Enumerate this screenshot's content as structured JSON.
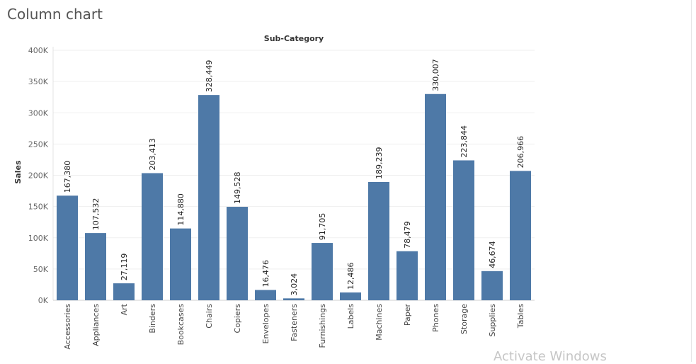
{
  "page": {
    "title": "Column chart"
  },
  "watermark": "Activate Windows",
  "chart_data": {
    "type": "bar",
    "title": "Sub-Category",
    "xlabel": "",
    "ylabel": "Sales",
    "ylim": [
      0,
      400000
    ],
    "yticks": [
      0,
      50000,
      100000,
      150000,
      200000,
      250000,
      300000,
      350000,
      400000
    ],
    "ytick_labels": [
      "0K",
      "50K",
      "100K",
      "150K",
      "200K",
      "250K",
      "300K",
      "350K",
      "400K"
    ],
    "grid": true,
    "bar_color": "#4e79a7",
    "categories": [
      "Accessories",
      "Appliances",
      "Art",
      "Binders",
      "Bookcases",
      "Chairs",
      "Copiers",
      "Envelopes",
      "Fasteners",
      "Furnishings",
      "Labels",
      "Machines",
      "Paper",
      "Phones",
      "Storage",
      "Supplies",
      "Tables"
    ],
    "values": [
      167380,
      107532,
      27119,
      203413,
      114880,
      328449,
      149528,
      16476,
      3024,
      91705,
      12486,
      189239,
      78479,
      330007,
      223844,
      46674,
      206966
    ],
    "data_labels": [
      "167,380",
      "107,532",
      "27,119",
      "203,413",
      "114,880",
      "328,449",
      "149,528",
      "16,476",
      "3,024",
      "91,705",
      "12,486",
      "189,239",
      "78,479",
      "330,007",
      "223,844",
      "46,674",
      "206,966"
    ]
  }
}
